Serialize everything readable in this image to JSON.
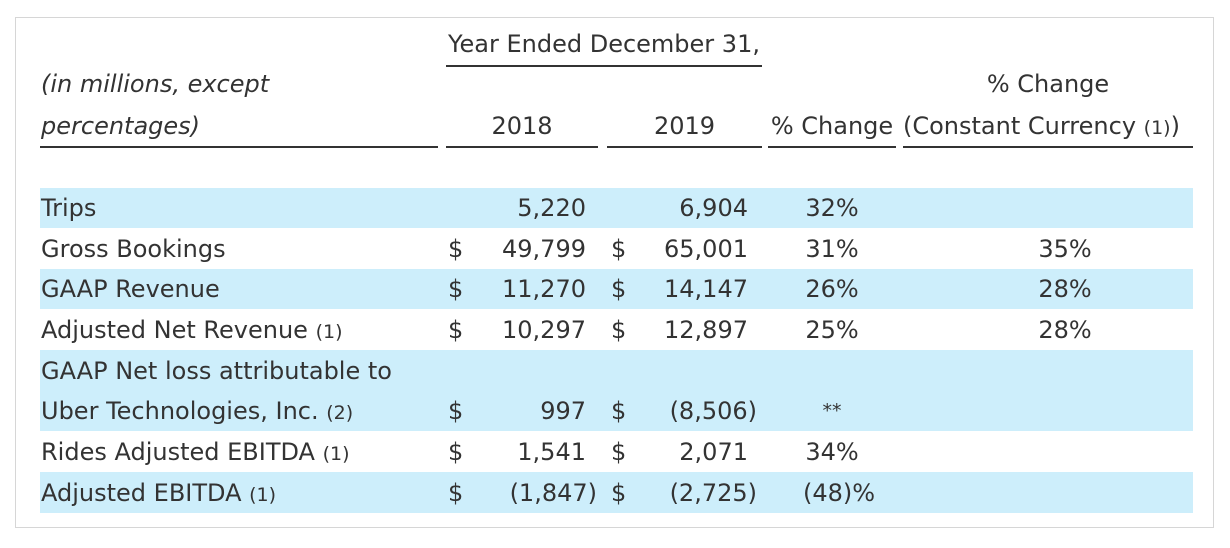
{
  "header": {
    "group_label": "Year Ended December 31,",
    "label_line1": "(in millions, except",
    "label_line2": "percentages)",
    "year1": "2018",
    "year2": "2019",
    "pct_change": "% Change",
    "cc_line1": "% Change",
    "cc_line2": "(Constant Currency",
    "cc_note": "(1)",
    "cc_close": ")"
  },
  "currency_symbol": "$",
  "band_color": "#cdeefb",
  "rows": [
    {
      "label": "Trips",
      "note": "",
      "v2018": "5,220",
      "v2019": "6,904",
      "pct": "32%",
      "cc": ""
    },
    {
      "label": "Gross Bookings",
      "note": "",
      "v2018": "49,799",
      "v2019": "65,001",
      "pct": "31%",
      "cc": "35%"
    },
    {
      "label": "GAAP Revenue",
      "note": "",
      "v2018": "11,270",
      "v2019": "14,147",
      "pct": "26%",
      "cc": "28%"
    },
    {
      "label": "Adjusted Net Revenue",
      "note": "(1)",
      "v2018": "10,297",
      "v2019": "12,897",
      "pct": "25%",
      "cc": "28%"
    },
    {
      "label_line1": "GAAP Net loss attributable to",
      "label": "Uber Technologies, Inc.",
      "note": "(2)",
      "v2018": "997",
      "v2019": "(8,506)",
      "pct": "**",
      "cc": ""
    },
    {
      "label": "Rides Adjusted EBITDA",
      "note": "(1)",
      "v2018": "1,541",
      "v2019": "2,071",
      "pct": "34%",
      "cc": ""
    },
    {
      "label": "Adjusted EBITDA",
      "note": "(1)",
      "v2018": "(1,847)",
      "v2019": "(2,725)",
      "pct": "(48)%",
      "cc": ""
    }
  ]
}
